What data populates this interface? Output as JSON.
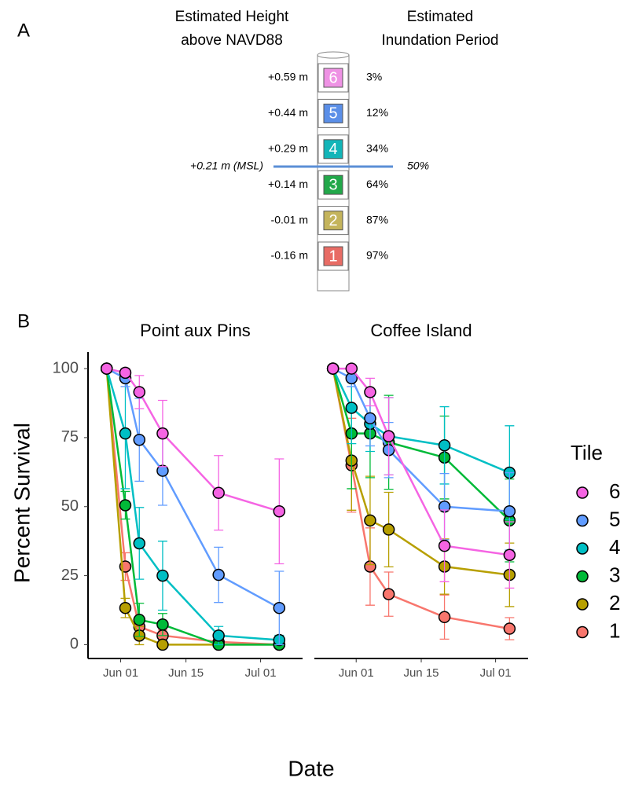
{
  "panel_a": {
    "label": "A",
    "left_header": [
      "Estimated Height",
      "above NAVD88"
    ],
    "right_header": [
      "Estimated",
      "Inundation Period"
    ],
    "tiles": [
      {
        "label": "6",
        "height": "+0.59 m",
        "inundation": "3%",
        "color": "#ee92e4"
      },
      {
        "label": "5",
        "height": "+0.44 m",
        "inundation": "12%",
        "color": "#5b8fe8"
      },
      {
        "label": "4",
        "height": "+0.29 m",
        "inundation": "34%",
        "color": "#12b5b8"
      },
      {
        "label": "3",
        "height": "+0.14 m",
        "inundation": "64%",
        "color": "#22a84a"
      },
      {
        "label": "2",
        "height": "-0.01 m",
        "inundation": "87%",
        "color": "#c4b45c"
      },
      {
        "label": "1",
        "height": "-0.16 m",
        "inundation": "97%",
        "color": "#e86c65"
      }
    ],
    "msl": {
      "height": "+0.21 m (MSL)",
      "inundation": "50%",
      "color": "#5b8fd6"
    }
  },
  "panel_b": {
    "label": "B",
    "ylabel": "Percent Survival",
    "xlabel": "Date",
    "legend_title": "Tile",
    "legend": "right"
  },
  "chart_data": [
    {
      "type": "line",
      "title": "Point aux Pins",
      "x": [
        "May 29",
        "Jun 02",
        "Jun 05",
        "Jun 10",
        "Jun 22",
        "Jul 05"
      ],
      "xlim": [
        "May 25",
        "Jul 10"
      ],
      "xticks": [
        "Jun 01",
        "Jun 15",
        "Jul 01"
      ],
      "ylim": [
        -5,
        106
      ],
      "yticks": [
        0,
        25,
        50,
        75,
        100
      ],
      "grid": false,
      "series": [
        {
          "name": "6",
          "color": "#F564E3",
          "values": [
            100,
            98.5,
            91.5,
            76.5,
            55,
            48.3
          ],
          "errors": [
            0,
            1.5,
            6,
            12,
            13.5,
            19
          ]
        },
        {
          "name": "5",
          "color": "#619CFF",
          "values": [
            100,
            96.5,
            74.2,
            63,
            25.3,
            13.3
          ],
          "errors": [
            0,
            3,
            15,
            12.5,
            10,
            13.3
          ]
        },
        {
          "name": "4",
          "color": "#00BFC4",
          "values": [
            100,
            76.5,
            36.7,
            25,
            3.3,
            1.7
          ],
          "errors": [
            0,
            20,
            13,
            12.5,
            3.3,
            1.7
          ]
        },
        {
          "name": "3",
          "color": "#00BA38",
          "values": [
            100,
            50.5,
            9,
            7.3,
            0,
            0
          ],
          "errors": [
            0,
            5,
            6,
            4,
            0,
            0
          ]
        },
        {
          "name": "2",
          "color": "#B79F00",
          "values": [
            100,
            13.3,
            3.3,
            0,
            0,
            0
          ],
          "errors": [
            0,
            3.5,
            3.3,
            0,
            0,
            0
          ]
        },
        {
          "name": "1",
          "color": "#F8766D",
          "values": [
            100,
            28.3,
            6.5,
            3.3,
            1,
            0
          ],
          "errors": [
            0,
            5,
            3,
            2,
            1,
            0
          ]
        }
      ]
    },
    {
      "type": "line",
      "title": "Coffee Island",
      "x": [
        "May 27",
        "May 31",
        "Jun 04",
        "Jun 08",
        "Jun 20",
        "Jul 04"
      ],
      "xlim": [
        "May 23",
        "Jul 08"
      ],
      "xticks": [
        "Jun 01",
        "Jun 15",
        "Jul 01"
      ],
      "ylim": [
        -5,
        106
      ],
      "grid": false,
      "series": [
        {
          "name": "6",
          "color": "#F564E3",
          "values": [
            100,
            100,
            91.5,
            75.5,
            35.8,
            32.5
          ],
          "errors": [
            0,
            0,
            5,
            14,
            13,
            12
          ]
        },
        {
          "name": "5",
          "color": "#619CFF",
          "values": [
            100,
            96.5,
            82,
            70.5,
            50,
            48.3
          ],
          "errors": [
            0,
            3,
            10,
            10,
            12,
            14
          ]
        },
        {
          "name": "4",
          "color": "#00BFC4",
          "values": [
            100,
            85.8,
            80,
            75.5,
            72.2,
            62.3
          ],
          "errors": [
            0,
            13,
            10,
            14,
            14,
            17
          ]
        },
        {
          "name": "3",
          "color": "#00BA38",
          "values": [
            100,
            76.5,
            76.5,
            73.3,
            67.8,
            45
          ],
          "errors": [
            0,
            20,
            16,
            17,
            15,
            15
          ]
        },
        {
          "name": "2",
          "color": "#B79F00",
          "values": [
            100,
            66.7,
            45,
            41.7,
            28.3,
            25.3
          ],
          "errors": [
            0,
            18,
            16,
            13.5,
            10,
            11.5
          ]
        },
        {
          "name": "1",
          "color": "#F8766D",
          "values": [
            100,
            65,
            28.3,
            18.3,
            10,
            5.8
          ],
          "errors": [
            0,
            17,
            14,
            8,
            8,
            4
          ]
        }
      ]
    }
  ]
}
